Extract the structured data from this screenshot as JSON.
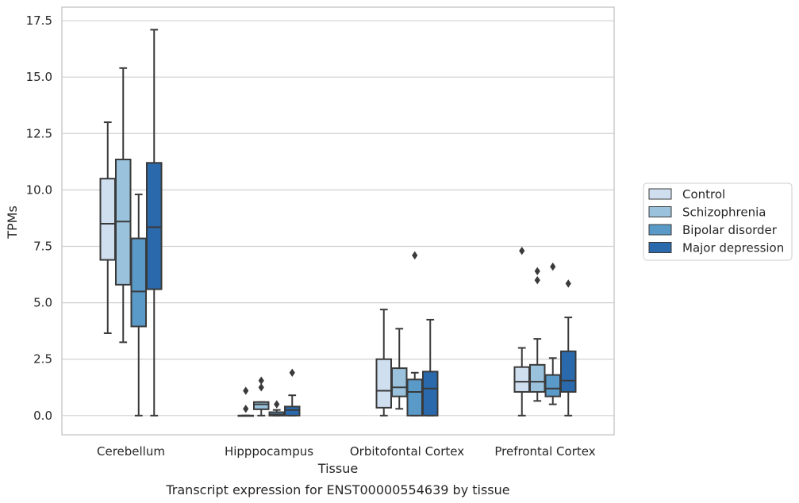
{
  "chart_data": {
    "type": "box",
    "xlabel": "Tissue",
    "ylabel": "TPMs",
    "caption": "Transcript expression for ENST00000554639 by tissue",
    "ylim": [
      -0.85,
      18.1
    ],
    "yticks": [
      0.0,
      2.5,
      5.0,
      7.5,
      10.0,
      12.5,
      15.0,
      17.5
    ],
    "ytick_labels": [
      "0.0",
      "2.5",
      "5.0",
      "7.5",
      "10.0",
      "12.5",
      "15.0",
      "17.5"
    ],
    "grid": "horizontal",
    "legend_position": "right",
    "categories": [
      "Cerebellum",
      "Hipppocampus",
      "Orbitofontal Cortex",
      "Prefrontal Cortex"
    ],
    "series": [
      {
        "name": "Control",
        "color": "#cfdff0",
        "boxes": [
          {
            "whisker_low": 3.65,
            "q1": 6.9,
            "median": 8.5,
            "q3": 10.5,
            "whisker_high": 13.0,
            "outliers": []
          },
          {
            "whisker_low": 0.0,
            "q1": 0.0,
            "median": 0.0,
            "q3": 0.0,
            "whisker_high": 0.0,
            "outliers": [
              0.3,
              1.1
            ]
          },
          {
            "whisker_low": 0.0,
            "q1": 0.35,
            "median": 1.1,
            "q3": 2.5,
            "whisker_high": 4.7,
            "outliers": []
          },
          {
            "whisker_low": 0.0,
            "q1": 1.05,
            "median": 1.5,
            "q3": 2.15,
            "whisker_high": 3.0,
            "outliers": [
              7.3
            ]
          }
        ]
      },
      {
        "name": "Schizophrenia",
        "color": "#9ac2dc",
        "boxes": [
          {
            "whisker_low": 3.25,
            "q1": 5.8,
            "median": 8.6,
            "q3": 11.35,
            "whisker_high": 15.4,
            "outliers": []
          },
          {
            "whisker_low": 0.0,
            "q1": 0.28,
            "median": 0.5,
            "q3": 0.6,
            "whisker_high": 0.6,
            "outliers": [
              1.25,
              1.55
            ]
          },
          {
            "whisker_low": 0.3,
            "q1": 0.85,
            "median": 1.25,
            "q3": 2.1,
            "whisker_high": 3.85,
            "outliers": []
          },
          {
            "whisker_low": 0.65,
            "q1": 1.05,
            "median": 1.5,
            "q3": 2.25,
            "whisker_high": 3.4,
            "outliers": [
              6.0,
              6.4
            ]
          }
        ]
      },
      {
        "name": "Bipolar disorder",
        "color": "#5a9ac8",
        "boxes": [
          {
            "whisker_low": 0.0,
            "q1": 3.95,
            "median": 5.5,
            "q3": 7.85,
            "whisker_high": 9.8,
            "outliers": []
          },
          {
            "whisker_low": 0.0,
            "q1": 0.0,
            "median": 0.05,
            "q3": 0.15,
            "whisker_high": 0.25,
            "outliers": [
              0.5
            ]
          },
          {
            "whisker_low": 0.0,
            "q1": 0.0,
            "median": 1.05,
            "q3": 1.6,
            "whisker_high": 1.9,
            "outliers": [
              7.1
            ]
          },
          {
            "whisker_low": 0.5,
            "q1": 0.85,
            "median": 1.2,
            "q3": 1.8,
            "whisker_high": 2.55,
            "outliers": [
              6.6
            ]
          }
        ]
      },
      {
        "name": "Major depression",
        "color": "#2a6aac",
        "boxes": [
          {
            "whisker_low": 0.0,
            "q1": 5.6,
            "median": 8.35,
            "q3": 11.2,
            "whisker_high": 17.1,
            "outliers": []
          },
          {
            "whisker_low": 0.0,
            "q1": 0.0,
            "median": 0.25,
            "q3": 0.4,
            "whisker_high": 0.9,
            "outliers": [
              1.9
            ]
          },
          {
            "whisker_low": 0.0,
            "q1": 0.0,
            "median": 1.2,
            "q3": 1.95,
            "whisker_high": 4.25,
            "outliers": []
          },
          {
            "whisker_low": 0.0,
            "q1": 1.05,
            "median": 1.55,
            "q3": 2.85,
            "whisker_high": 4.35,
            "outliers": [
              5.85
            ]
          }
        ]
      }
    ]
  }
}
